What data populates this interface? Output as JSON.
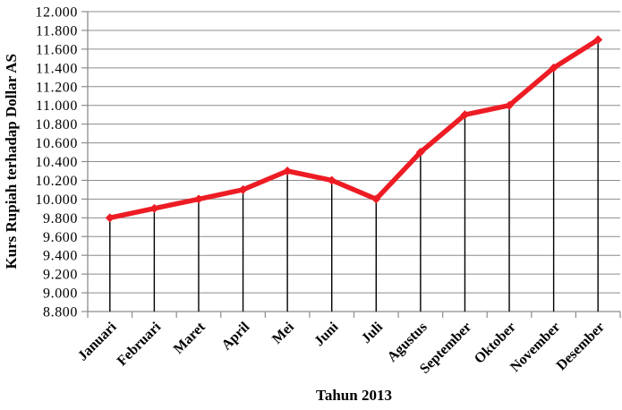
{
  "chart_data": {
    "type": "line",
    "title": "",
    "categories": [
      "Januari",
      "Februari",
      "Maret",
      "April",
      "Mei",
      "Juni",
      "Juli",
      "Agustus",
      "September",
      "Oktober",
      "November",
      "Desember"
    ],
    "series": [
      {
        "name": "Kurs Rupiah terhadap Dollar AS",
        "values": [
          9800,
          9900,
          10000,
          10100,
          10300,
          10200,
          10000,
          10500,
          10900,
          11000,
          11400,
          11700
        ]
      }
    ],
    "xlabel": "Tahun 2013",
    "ylabel": "Kurs Rupiah terhadap Dollar AS",
    "ylim": [
      8800,
      12000
    ],
    "ytick_step": 200,
    "ytick_labels": [
      "8.800",
      "9.000",
      "9.200",
      "9.400",
      "9.600",
      "9.800",
      "10.000",
      "10.200",
      "10.400",
      "10.600",
      "10.800",
      "11.000",
      "11.200",
      "11.400",
      "11.600",
      "11.800",
      "12.000"
    ],
    "grid": true,
    "legend_position": "none",
    "x_label_rotation_deg": -45,
    "marker": "diamond",
    "droplines": true,
    "colors": {
      "line": "#ed1c24",
      "marker": "#ed1c24",
      "gridline": "#8c8c8c",
      "axis": "#8c8c8c",
      "dropline": "#000000",
      "text": "#000000",
      "background": "#ffffff"
    }
  }
}
